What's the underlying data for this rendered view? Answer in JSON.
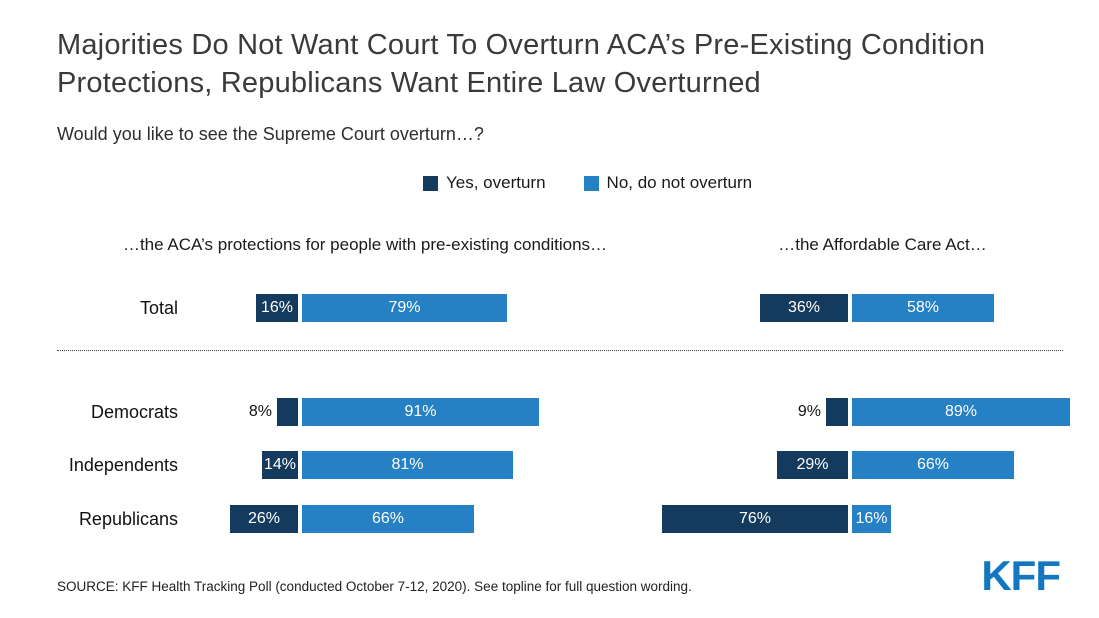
{
  "title": "Majorities Do Not Want Court To Overturn ACA’s Pre-Existing Condition Protections, Republicans Want Entire Law Overturned",
  "subtitle": "Would you like to see the Supreme Court overturn…?",
  "legend": [
    {
      "label": "Yes, overturn",
      "color": "#143a5d"
    },
    {
      "label": "No, do not overturn",
      "color": "#2580c4"
    }
  ],
  "source": "SOURCE: KFF Health Tracking Poll (conducted October 7-12, 2020). See topline for full question wording.",
  "logo": "KFF",
  "chart_data": {
    "type": "bar",
    "subtype": "diverging-stacked-horizontal",
    "categories": [
      "Total",
      "Democrats",
      "Independents",
      "Republicans"
    ],
    "value_suffix": "%",
    "legend_position": "top",
    "grid": false,
    "panels": [
      {
        "title": "…the ACA’s protections for people with pre-existing conditions…",
        "series": [
          {
            "name": "Yes, overturn",
            "values": [
              16,
              8,
              14,
              26
            ]
          },
          {
            "name": "No, do not overturn",
            "values": [
              79,
              91,
              81,
              66
            ]
          }
        ]
      },
      {
        "title": "…the Affordable Care Act…",
        "series": [
          {
            "name": "Yes, overturn",
            "values": [
              36,
              9,
              29,
              76
            ]
          },
          {
            "name": "No, do not overturn",
            "values": [
              58,
              89,
              66,
              16
            ]
          }
        ]
      }
    ]
  }
}
